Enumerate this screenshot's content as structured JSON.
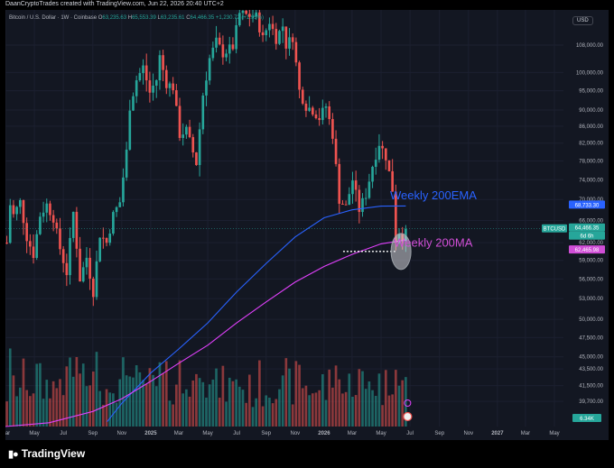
{
  "header": {
    "credit": "DaanCryptoTrades created with TradingView.com, Jun 22, 2026 20:40 UTC+2"
  },
  "legend": {
    "symbol": "Bitcoin / U.S. Dollar · 1W · Coinbase",
    "o_label": "O",
    "o_value": "63,235.63",
    "h_label": "H",
    "h_value": "65,553.39",
    "l_label": "L",
    "l_value": "63,235.61",
    "c_label": "C",
    "c_value": "64,466.35",
    "change": "+1,230.72 (+1.95%)"
  },
  "currency_button": "USD",
  "footer": {
    "logo_text": "TradingView"
  },
  "colors": {
    "background": "#131722",
    "up": "#26a69a",
    "down": "#ef5350",
    "ema_line": "#2962ff",
    "ma_line": "#e040fb",
    "ema_label": "#2962ff",
    "ma_label": "#d04ed6"
  },
  "chart_data": {
    "type": "candlestick",
    "timeframe": "1W",
    "y_scale": "log",
    "ylim": [
      37000,
      118000
    ],
    "x_range": [
      "2024-03-01",
      "2027-05-20"
    ],
    "price_ticks": [
      108000,
      100000,
      95000,
      90000,
      86000,
      82000,
      78000,
      74000,
      70000,
      66000,
      62000,
      59000,
      56000,
      53000,
      50000,
      47500,
      45000,
      43500,
      41500,
      39700
    ],
    "price_tick_labels": [
      "108,000.00",
      "100,000.00",
      "95,000.00",
      "90,000.00",
      "86,000.00",
      "82,000.00",
      "78,000.00",
      "74,000.00",
      "70,000.00",
      "66,000.00",
      "62,000.00",
      "59,000.00",
      "56,000.00",
      "53,000.00",
      "50,000.00",
      "47,500.00",
      "45,000.00",
      "43,500.00",
      "41,500.00",
      "39,700.00"
    ],
    "x_ticks": [
      {
        "date": "2024-03-01",
        "label": "Mar"
      },
      {
        "date": "2024-05-01",
        "label": "May"
      },
      {
        "date": "2024-07-01",
        "label": "Jul"
      },
      {
        "date": "2024-09-01",
        "label": "Sep"
      },
      {
        "date": "2024-11-01",
        "label": "Nov"
      },
      {
        "date": "2025-01-01",
        "label": "2025"
      },
      {
        "date": "2025-03-01",
        "label": "Mar"
      },
      {
        "date": "2025-05-01",
        "label": "May"
      },
      {
        "date": "2025-07-01",
        "label": "Jul"
      },
      {
        "date": "2025-09-01",
        "label": "Sep"
      },
      {
        "date": "2025-11-01",
        "label": "Nov"
      },
      {
        "date": "2026-01-01",
        "label": "2026"
      },
      {
        "date": "2026-03-01",
        "label": "Mar"
      },
      {
        "date": "2026-05-01",
        "label": "May"
      },
      {
        "date": "2026-07-01",
        "label": "Jul"
      },
      {
        "date": "2026-09-01",
        "label": "Sep"
      },
      {
        "date": "2026-11-01",
        "label": "Nov"
      },
      {
        "date": "2027-01-01",
        "label": "2027"
      },
      {
        "date": "2027-03-01",
        "label": "Mar"
      },
      {
        "date": "2027-05-01",
        "label": "May"
      }
    ],
    "close_waypoints": [
      [
        "2024-03-04",
        62000
      ],
      [
        "2024-03-11",
        69000
      ],
      [
        "2024-03-18",
        67000
      ],
      [
        "2024-04-01",
        69500
      ],
      [
        "2024-04-15",
        63000
      ],
      [
        "2024-04-29",
        60000
      ],
      [
        "2024-05-13",
        67000
      ],
      [
        "2024-05-27",
        69000
      ],
      [
        "2024-06-10",
        66500
      ],
      [
        "2024-06-24",
        61000
      ],
      [
        "2024-07-08",
        57000
      ],
      [
        "2024-07-22",
        67500
      ],
      [
        "2024-08-05",
        56000
      ],
      [
        "2024-08-19",
        59500
      ],
      [
        "2024-09-02",
        54000
      ],
      [
        "2024-09-16",
        63500
      ],
      [
        "2024-09-30",
        62000
      ],
      [
        "2024-10-14",
        67000
      ],
      [
        "2024-10-28",
        69500
      ],
      [
        "2024-11-11",
        80000
      ],
      [
        "2024-11-18",
        91000
      ],
      [
        "2024-12-02",
        98000
      ],
      [
        "2024-12-16",
        101500
      ],
      [
        "2024-12-30",
        94500
      ],
      [
        "2025-01-13",
        98000
      ],
      [
        "2025-01-20",
        104500
      ],
      [
        "2025-02-03",
        97000
      ],
      [
        "2025-02-17",
        96000
      ],
      [
        "2025-03-03",
        84000
      ],
      [
        "2025-03-17",
        85000
      ],
      [
        "2025-04-07",
        77500
      ],
      [
        "2025-04-21",
        94000
      ],
      [
        "2025-05-05",
        104000
      ],
      [
        "2025-05-19",
        109000
      ],
      [
        "2025-06-02",
        105500
      ],
      [
        "2025-06-23",
        107500
      ],
      [
        "2025-07-07",
        118000
      ],
      [
        "2025-07-21",
        117500
      ],
      [
        "2025-08-11",
        117000
      ],
      [
        "2025-08-25",
        110000
      ],
      [
        "2025-09-08",
        115500
      ],
      [
        "2025-09-22",
        110000
      ],
      [
        "2025-10-06",
        114000
      ],
      [
        "2025-10-13",
        108000
      ],
      [
        "2025-10-27",
        110500
      ],
      [
        "2025-11-10",
        95000
      ],
      [
        "2025-11-24",
        91000
      ],
      [
        "2025-12-08",
        90000
      ],
      [
        "2025-12-22",
        88000
      ],
      [
        "2026-01-05",
        91000
      ],
      [
        "2026-01-19",
        84000
      ],
      [
        "2026-02-02",
        70000
      ],
      [
        "2026-02-16",
        68500
      ],
      [
        "2026-03-02",
        74000
      ],
      [
        "2026-03-16",
        68000
      ],
      [
        "2026-03-30",
        71000
      ],
      [
        "2026-04-13",
        77000
      ],
      [
        "2026-04-27",
        82000
      ],
      [
        "2026-05-11",
        79000
      ],
      [
        "2026-05-25",
        72000
      ],
      [
        "2026-06-01",
        62500
      ],
      [
        "2026-06-08",
        64000
      ],
      [
        "2026-06-15",
        63235
      ],
      [
        "2026-06-22",
        64466
      ]
    ],
    "ema200_waypoints": [
      [
        "2024-10-01",
        37500
      ],
      [
        "2024-11-01",
        39500
      ],
      [
        "2025-01-01",
        43000
      ],
      [
        "2025-03-01",
        46000
      ],
      [
        "2025-05-01",
        49500
      ],
      [
        "2025-07-01",
        54000
      ],
      [
        "2025-09-01",
        58500
      ],
      [
        "2025-11-01",
        63000
      ],
      [
        "2026-01-01",
        66500
      ],
      [
        "2026-03-01",
        68000
      ],
      [
        "2026-05-01",
        68700
      ],
      [
        "2026-06-22",
        68733
      ]
    ],
    "ma200_waypoints": [
      [
        "2024-03-01",
        37000
      ],
      [
        "2024-06-01",
        37400
      ],
      [
        "2024-09-01",
        38600
      ],
      [
        "2024-11-01",
        40000
      ],
      [
        "2025-01-01",
        42000
      ],
      [
        "2025-03-01",
        44200
      ],
      [
        "2025-05-01",
        46500
      ],
      [
        "2025-07-01",
        49500
      ],
      [
        "2025-09-01",
        52500
      ],
      [
        "2025-11-01",
        55500
      ],
      [
        "2026-01-01",
        58000
      ],
      [
        "2026-03-01",
        60000
      ],
      [
        "2026-05-01",
        61800
      ],
      [
        "2026-06-22",
        62466
      ]
    ],
    "price_labels": [
      {
        "text": "68,733.30",
        "value": 68733.3,
        "color": "#2962ff"
      },
      {
        "text": "BTCUSD",
        "value": 64466.35,
        "color": "#26a69a",
        "symbol": true
      },
      {
        "text": "64,466.35",
        "value": 64466.35,
        "color": "#26a69a"
      },
      {
        "text": "6d 6h",
        "value": 64466.35,
        "color": "#26a69a",
        "countdown": true
      },
      {
        "text": "62,465.98",
        "value": 62465.98,
        "color": "#d04ed6"
      }
    ],
    "volume_label": "6.34K",
    "annotations": [
      {
        "text": "Weekly 200EMA",
        "color": "#2962ff",
        "at_date": "2026-05-20",
        "at_value": 70000
      },
      {
        "text": "Weekly 200MA",
        "color": "#d04ed6",
        "at_date": "2026-05-28",
        "at_value": 61300
      }
    ],
    "support_line": {
      "value": 60500,
      "from": "2026-02-10",
      "to": "2026-06-01"
    },
    "highlight_ellipse": {
      "date": "2026-06-12",
      "value": 60500
    }
  }
}
